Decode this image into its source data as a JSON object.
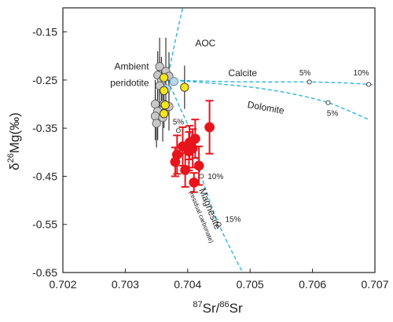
{
  "chart_data": {
    "type": "scatter",
    "title": "",
    "xlabel_parts": {
      "sup1": "87",
      "mid": "Sr/",
      "sup2": "86",
      "end": "Sr"
    },
    "ylabel_parts": {
      "pre": "δ",
      "sup": "26",
      "end": "Mg(‰)"
    },
    "xlim": [
      0.702,
      0.707
    ],
    "ylim": [
      -0.65,
      -0.1
    ],
    "x_ticks": [
      0.702,
      0.703,
      0.704,
      0.705,
      0.706,
      0.707
    ],
    "x_tick_labels": [
      "0.702",
      "0.703",
      "0.704",
      "0.705",
      "0.706",
      "0.707"
    ],
    "y_ticks": [
      -0.15,
      -0.25,
      -0.35,
      -0.45,
      -0.55,
      -0.65
    ],
    "y_tick_labels": [
      "-0.15",
      "-0.25",
      "-0.35",
      "-0.45",
      "-0.55",
      "-0.65"
    ],
    "grid": false,
    "colors": {
      "red": "#e8141b",
      "yellow": "#f5e51a",
      "gray": "#c8c8c8",
      "lightblue": "#b9d9ee",
      "curve": "#2fb5e0",
      "error": "#222222"
    },
    "gray_points": [
      {
        "x": 0.70355,
        "y": -0.222,
        "err": 0.06
      },
      {
        "x": 0.70365,
        "y": -0.232,
        "err": 0.07
      },
      {
        "x": 0.70352,
        "y": -0.24,
        "err": 0.05
      },
      {
        "x": 0.7037,
        "y": -0.242,
        "err": 0.05
      },
      {
        "x": 0.70358,
        "y": -0.252,
        "err": 0.05
      },
      {
        "x": 0.70355,
        "y": -0.262,
        "err": 0.06
      },
      {
        "x": 0.70348,
        "y": -0.3,
        "err": 0.05
      },
      {
        "x": 0.70362,
        "y": -0.3,
        "err": 0.05
      },
      {
        "x": 0.7037,
        "y": -0.305,
        "err": 0.05
      },
      {
        "x": 0.70352,
        "y": -0.315,
        "err": 0.06
      },
      {
        "x": 0.70348,
        "y": -0.325,
        "err": 0.05
      },
      {
        "x": 0.7036,
        "y": -0.328,
        "err": 0.05
      },
      {
        "x": 0.7035,
        "y": -0.34,
        "err": 0.05
      }
    ],
    "blue_points": [
      {
        "x": 0.70378,
        "y": -0.253
      },
      {
        "x": 0.70366,
        "y": -0.268
      }
    ],
    "yellow_points": [
      {
        "x": 0.70362,
        "y": -0.245
      },
      {
        "x": 0.70362,
        "y": -0.272
      },
      {
        "x": 0.70395,
        "y": -0.265,
        "err": 0.045
      },
      {
        "x": 0.70364,
        "y": -0.302
      },
      {
        "x": 0.70362,
        "y": -0.32
      }
    ],
    "red_points": [
      {
        "x": 0.70435,
        "y": -0.348,
        "err": 0.055
      },
      {
        "x": 0.70412,
        "y": -0.372,
        "err": 0.04
      },
      {
        "x": 0.70403,
        "y": -0.38,
        "err": 0.035
      },
      {
        "x": 0.70392,
        "y": -0.388,
        "err": 0.04
      },
      {
        "x": 0.70408,
        "y": -0.392,
        "err": 0.04
      },
      {
        "x": 0.70402,
        "y": -0.398,
        "err": 0.04
      },
      {
        "x": 0.70383,
        "y": -0.405,
        "err": 0.04
      },
      {
        "x": 0.7038,
        "y": -0.42,
        "err": 0.03
      },
      {
        "x": 0.70418,
        "y": -0.428,
        "err": 0.04
      },
      {
        "x": 0.70396,
        "y": -0.437,
        "err": 0.035
      },
      {
        "x": 0.7041,
        "y": -0.463,
        "err": 0.02
      }
    ],
    "mixing_curves": [
      {
        "name": "AOC",
        "points": [
          [
            0.70368,
            -0.25
          ],
          [
            0.70375,
            -0.2
          ],
          [
            0.70385,
            -0.14
          ],
          [
            0.70392,
            -0.1
          ]
        ]
      },
      {
        "name": "Calcite",
        "points": [
          [
            0.70368,
            -0.25
          ],
          [
            0.7045,
            -0.253
          ],
          [
            0.7052,
            -0.254
          ],
          [
            0.70595,
            -0.254
          ],
          [
            0.7065,
            -0.256
          ],
          [
            0.7069,
            -0.259
          ],
          [
            0.707,
            -0.26
          ]
        ]
      },
      {
        "name": "Dolomite",
        "points": [
          [
            0.70368,
            -0.25
          ],
          [
            0.7045,
            -0.258
          ],
          [
            0.7052,
            -0.268
          ],
          [
            0.7058,
            -0.282
          ],
          [
            0.70625,
            -0.297
          ],
          [
            0.7066,
            -0.315
          ],
          [
            0.7069,
            -0.332
          ]
        ]
      },
      {
        "name": "Magnesite",
        "points": [
          [
            0.70368,
            -0.25
          ],
          [
            0.70385,
            -0.3
          ],
          [
            0.70405,
            -0.36
          ],
          [
            0.70422,
            -0.45
          ],
          [
            0.7045,
            -0.55
          ],
          [
            0.70488,
            -0.65
          ]
        ]
      }
    ],
    "curve_markers": [
      {
        "x": 0.70595,
        "y": -0.254
      },
      {
        "x": 0.7069,
        "y": -0.259
      },
      {
        "x": 0.70625,
        "y": -0.297
      },
      {
        "x": 0.70385,
        "y": -0.355
      },
      {
        "x": 0.70422,
        "y": -0.45
      },
      {
        "x": 0.7045,
        "y": -0.55
      }
    ],
    "annotations": [
      {
        "text": "AOC",
        "x": 0.70412,
        "y": -0.18,
        "cls": "annot",
        "anchor": "start"
      },
      {
        "text": "Ambient",
        "x": 0.70338,
        "y": -0.228,
        "cls": "annot",
        "anchor": "end"
      },
      {
        "text": "peridotite",
        "x": 0.70338,
        "y": -0.262,
        "cls": "annot",
        "anchor": "end"
      },
      {
        "text": "Calcite",
        "x": 0.70465,
        "y": -0.242,
        "cls": "annot",
        "anchor": "start"
      },
      {
        "text": "Dolomite",
        "x": 0.70495,
        "y": -0.307,
        "cls": "annot",
        "anchor": "start",
        "rotate": 10
      },
      {
        "text": "5%",
        "x": 0.70588,
        "y": -0.24,
        "cls": "pct",
        "anchor": "middle"
      },
      {
        "text": "10%",
        "x": 0.70678,
        "y": -0.24,
        "cls": "pct",
        "anchor": "middle"
      },
      {
        "text": "5%",
        "x": 0.70632,
        "y": -0.324,
        "cls": "pct",
        "anchor": "middle"
      },
      {
        "text": "5%",
        "x": 0.70376,
        "y": -0.342,
        "cls": "pct",
        "anchor": "start"
      },
      {
        "text": "10%",
        "x": 0.70432,
        "y": -0.456,
        "cls": "pct",
        "anchor": "start"
      },
      {
        "text": "15%",
        "x": 0.7046,
        "y": -0.545,
        "cls": "pct",
        "anchor": "start"
      },
      {
        "text": "Magnesite",
        "x": 0.70418,
        "y": -0.478,
        "cls": "annot",
        "anchor": "start",
        "rotate": 68
      },
      {
        "text": "(residual carbonate)",
        "x": 0.70402,
        "y": -0.482,
        "cls": "small-annot",
        "anchor": "start",
        "rotate": 68
      }
    ]
  }
}
